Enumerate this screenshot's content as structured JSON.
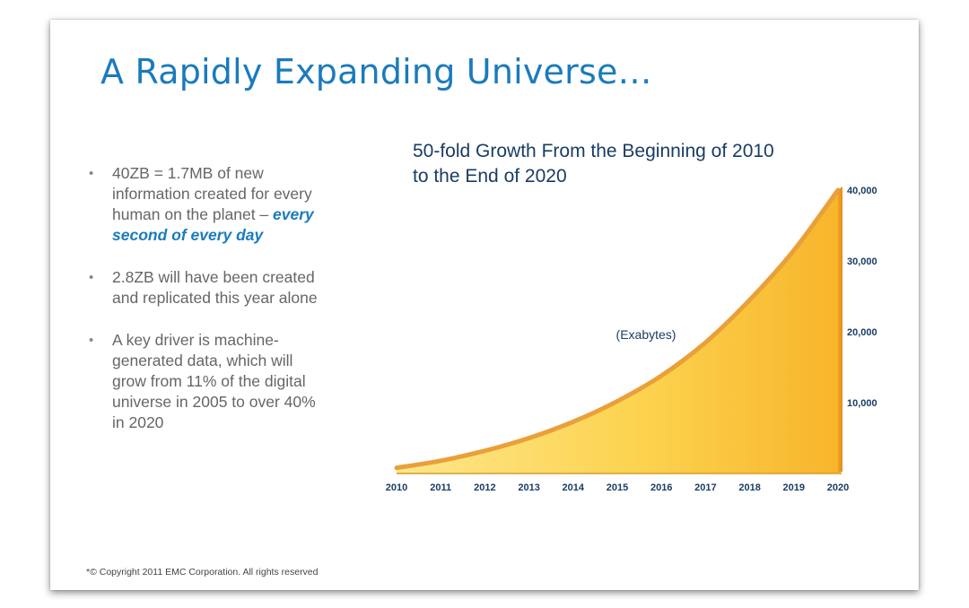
{
  "slide": {
    "title": "A Rapidly Expanding Universe…",
    "copyright": "*© Copyright 2011 EMC Corporation. All rights reserved"
  },
  "bullets": [
    {
      "text": "40ZB = 1.7MB of new information created for every human on the planet – ",
      "emphasis": "every second of every day"
    },
    {
      "text": "2.8ZB will have been created and replicated this year alone",
      "emphasis": ""
    },
    {
      "text": "A key driver is machine-generated data, which will grow from 11% of the digital universe in 2005 to over 40% in 2020",
      "emphasis": ""
    }
  ],
  "colors": {
    "title": "#1a7bbd",
    "area_light": "#fde27a",
    "area_dark": "#f7b52b",
    "area_edge": "#e59a25",
    "text_dark": "#1a3c63"
  },
  "chart_data": {
    "type": "area",
    "title": "50-fold Growth From the Beginning of 2010 to the End of 2020",
    "title_lines": [
      "50-fold Growth From the Beginning of 2010",
      "to the End of 2020"
    ],
    "unit_label": "(Exabytes)",
    "categories": [
      "2010",
      "2011",
      "2012",
      "2013",
      "2014",
      "2015",
      "2016",
      "2017",
      "2018",
      "2019",
      "2020"
    ],
    "values": [
      800,
      1800,
      3200,
      5000,
      7300,
      10200,
      13800,
      18500,
      24500,
      31500,
      40000
    ],
    "ylim": [
      0,
      40000
    ],
    "yticks": [
      10000,
      20000,
      30000,
      40000
    ],
    "ytick_labels": [
      "10,000",
      "20,000",
      "30,000",
      "40,000"
    ],
    "axis_side": "right",
    "grid": false,
    "legend": "none"
  }
}
